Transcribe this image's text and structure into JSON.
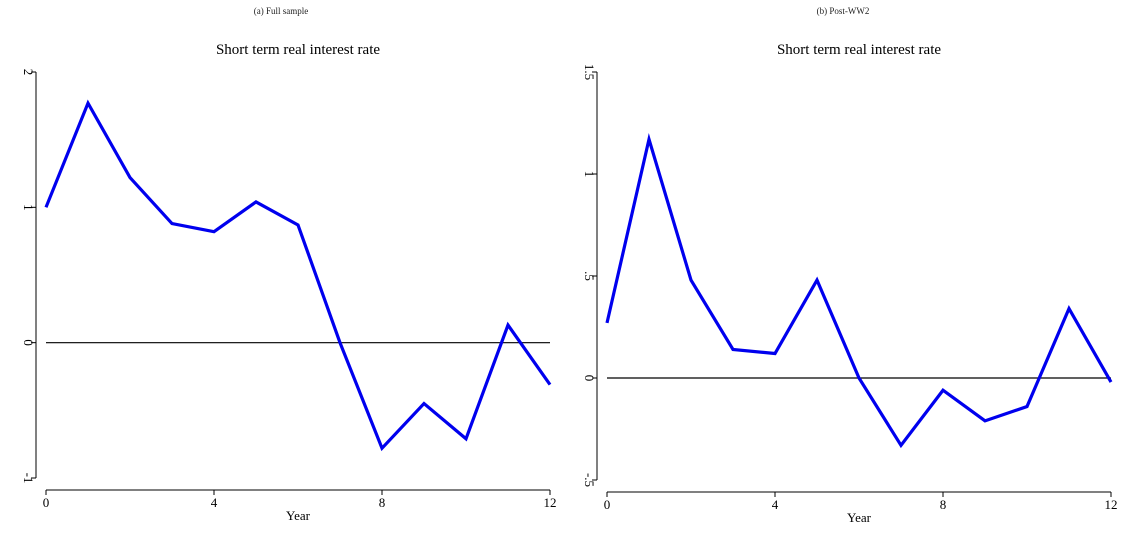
{
  "chart_data": [
    {
      "type": "line",
      "caption": "(a) Full sample",
      "title": "Short term real interest rate",
      "xlabel": "Year",
      "ylabel": "",
      "x": [
        0,
        1,
        2,
        3,
        4,
        5,
        6,
        7,
        8,
        9,
        10,
        11,
        12
      ],
      "xticks": [
        0,
        4,
        8,
        12
      ],
      "xtick_labels": [
        "0",
        "4",
        "8",
        "12"
      ],
      "yticks": [
        -1,
        0,
        1,
        2
      ],
      "ytick_labels": [
        "-1",
        "0",
        "1",
        "2"
      ],
      "xlim": [
        0,
        12
      ],
      "ylim": [
        -1,
        2
      ],
      "reference_line": 0,
      "grid": false,
      "legend": "none",
      "series": [
        {
          "color": "#0000ee",
          "values": [
            1.0,
            1.77,
            1.22,
            0.88,
            0.82,
            1.04,
            0.87,
            0.0,
            -0.78,
            -0.45,
            -0.71,
            0.13,
            -0.31
          ]
        }
      ]
    },
    {
      "type": "line",
      "caption": "(b) Post-WW2",
      "title": "Short term real interest rate",
      "xlabel": "Year",
      "ylabel": "",
      "x": [
        0,
        1,
        2,
        3,
        4,
        5,
        6,
        7,
        8,
        9,
        10,
        11,
        12
      ],
      "xticks": [
        0,
        4,
        8,
        12
      ],
      "xtick_labels": [
        "0",
        "4",
        "8",
        "12"
      ],
      "yticks": [
        -0.5,
        0,
        0.5,
        1,
        1.5
      ],
      "ytick_labels": [
        "-.5",
        "0",
        ".5",
        "1",
        "1.5"
      ],
      "xlim": [
        0,
        12
      ],
      "ylim": [
        -0.5,
        1.5
      ],
      "reference_line": 0,
      "grid": false,
      "legend": "none",
      "series": [
        {
          "color": "#0000ee",
          "values": [
            0.27,
            1.17,
            0.48,
            0.14,
            0.12,
            0.48,
            0.0,
            -0.33,
            -0.06,
            -0.21,
            -0.14,
            0.34,
            -0.02
          ]
        }
      ]
    }
  ]
}
